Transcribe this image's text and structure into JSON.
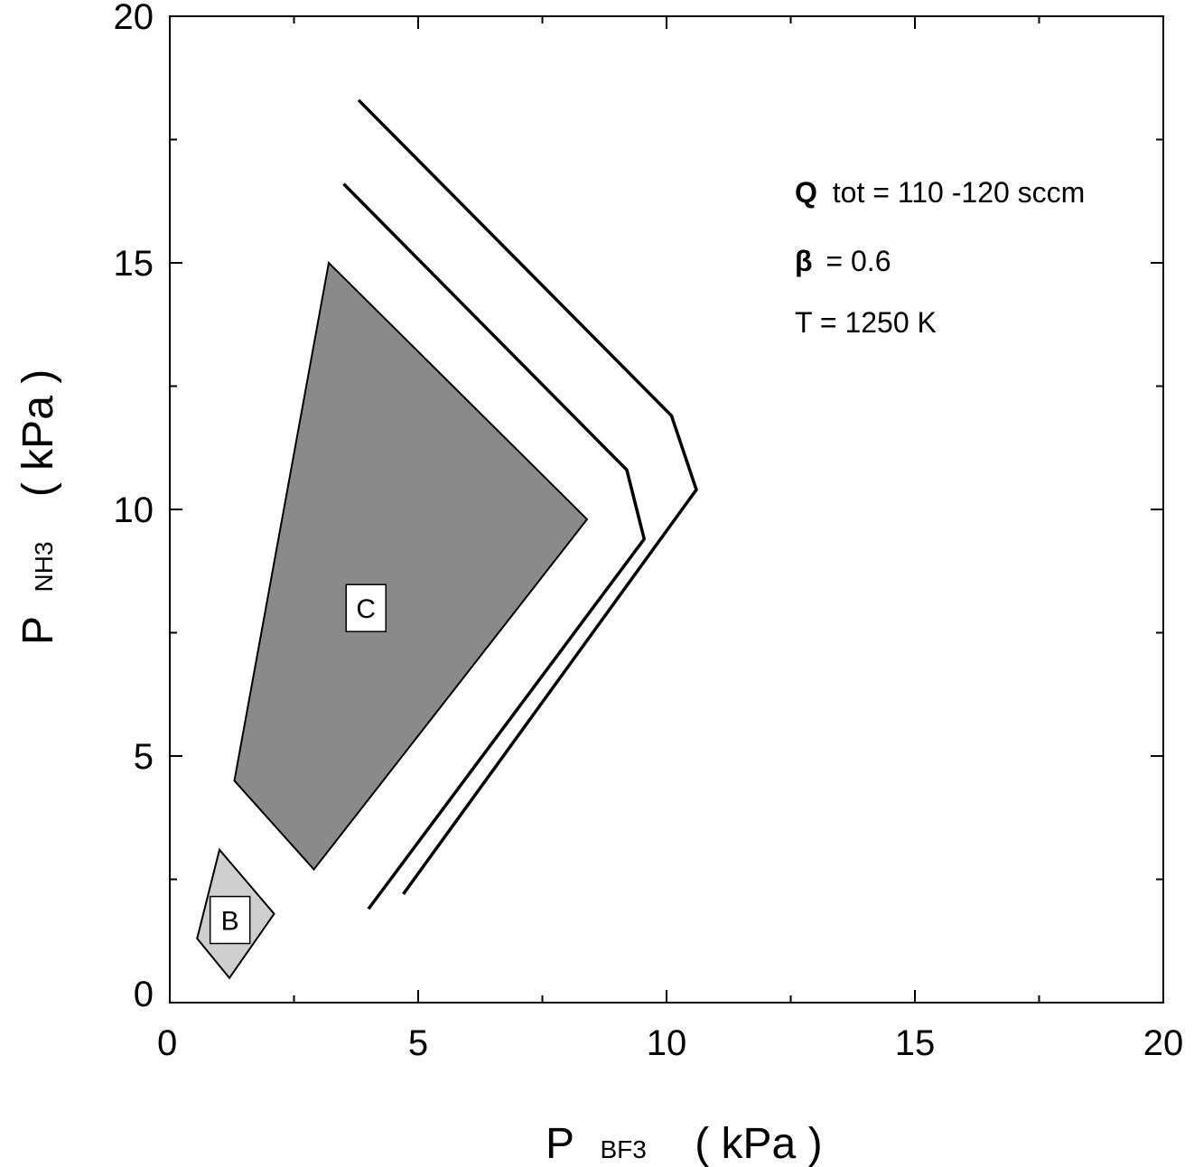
{
  "chart_data": {
    "type": "line",
    "xlim": [
      0,
      20
    ],
    "ylim": [
      0,
      20
    ],
    "x_ticks": [
      "0",
      "5",
      "10",
      "15",
      "20"
    ],
    "y_ticks": [
      "0",
      "5",
      "10",
      "15",
      "20"
    ],
    "xlabel": {
      "main": "P",
      "sub": "BF3",
      "unit": "( kPa )"
    },
    "ylabel": {
      "main": "P",
      "sub": "NH3",
      "unit": "( kPa )"
    },
    "annotations": {
      "q_symbol": "Q",
      "q_rest": "tot = 110 -120 sccm",
      "beta_symbol": "β",
      "beta_rest": "= 0.6",
      "temperature": "T = 1250 K"
    },
    "regions": [
      {
        "label": "C",
        "fill": "#8a8a8a",
        "points": [
          [
            1.3,
            4.5
          ],
          [
            3.2,
            15.0
          ],
          [
            8.4,
            9.8
          ],
          [
            2.9,
            2.7
          ]
        ]
      },
      {
        "label": "B",
        "fill": "#cfcfcf",
        "points": [
          [
            1.0,
            3.1
          ],
          [
            2.1,
            1.8
          ],
          [
            1.2,
            0.5
          ],
          [
            0.55,
            1.3
          ]
        ]
      }
    ],
    "series": [
      {
        "points": [
          [
            3.5,
            16.6
          ],
          [
            9.2,
            10.8
          ],
          [
            9.55,
            9.4
          ],
          [
            4.0,
            1.9
          ]
        ]
      },
      {
        "points": [
          [
            3.8,
            18.3
          ],
          [
            10.1,
            11.9
          ],
          [
            10.6,
            10.4
          ],
          [
            4.7,
            2.2
          ]
        ]
      }
    ]
  }
}
